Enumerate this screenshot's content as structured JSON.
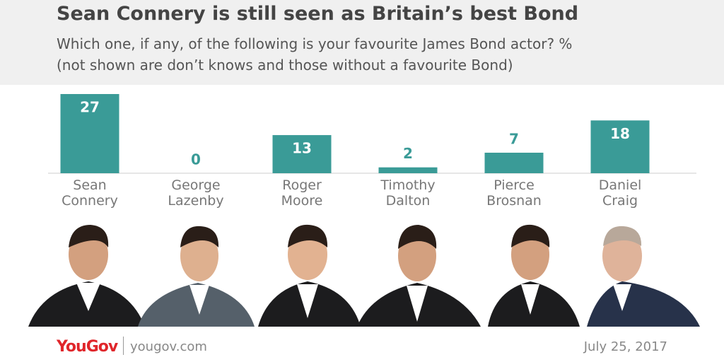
{
  "chart_data": {
    "type": "bar",
    "title": "Sean Connery is still seen as Britain’s best Bond",
    "subtitle": "Which one, if any, of the following is your favourite James Bond actor? %",
    "note": "(not shown are don’t knows and those without a favourite Bond)",
    "categories": [
      "Sean Connery",
      "George Lazenby",
      "Roger Moore",
      "Timothy Dalton",
      "Pierce Brosnan",
      "Daniel Craig"
    ],
    "values": [
      27,
      0,
      13,
      2,
      7,
      18
    ],
    "color": "#3a9b97",
    "ylim": [
      0,
      27
    ]
  },
  "footer": {
    "brand": "YouGov",
    "site": "yougov.com",
    "date": "July 25, 2017"
  }
}
